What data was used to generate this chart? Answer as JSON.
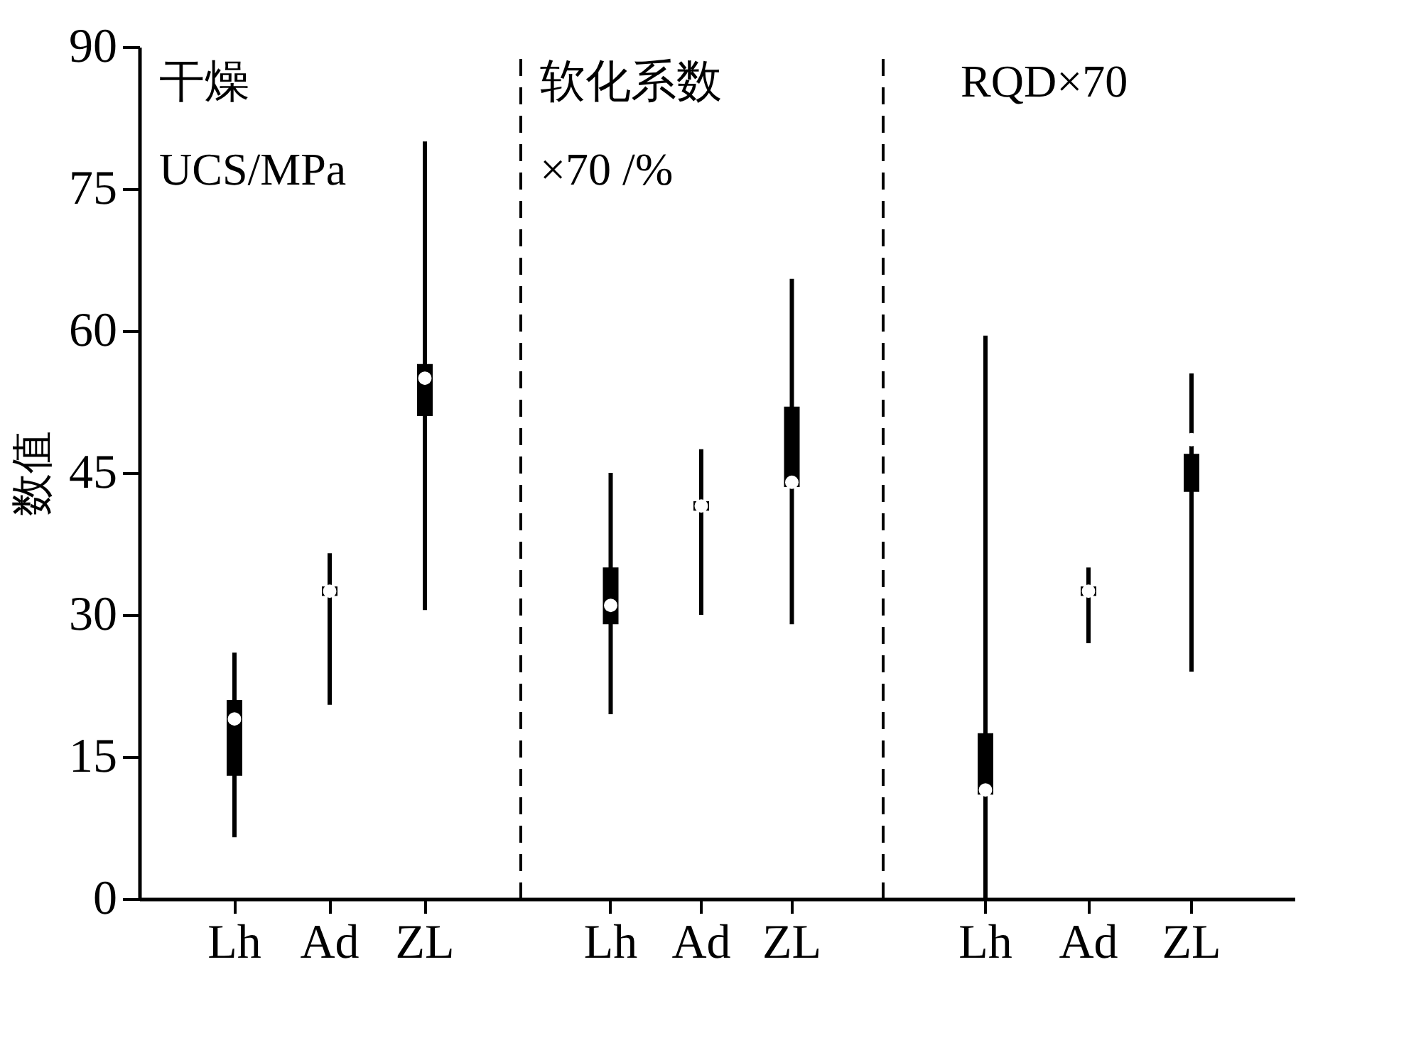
{
  "chart_data": [
    {
      "type": "box",
      "ylabel": "数值",
      "annotations": [
        "干燥",
        "UCS/MPa"
      ],
      "categories": [
        "Lh",
        "Ad",
        "ZL"
      ],
      "ylim": [
        0,
        90
      ],
      "yticks": [
        0,
        15,
        30,
        45,
        60,
        75,
        90
      ],
      "boxes": [
        {
          "low": 6.5,
          "q1": 13,
          "median": 19,
          "q3": 21,
          "high": 26
        },
        {
          "low": 20.5,
          "q1": 32,
          "median": 32.5,
          "q3": 33,
          "high": 36.5
        },
        {
          "low": 30.5,
          "q1": 51,
          "median": 55,
          "q3": 56.5,
          "high": 80
        }
      ]
    },
    {
      "type": "box",
      "annotations": [
        "软化系数",
        "×70 /%"
      ],
      "categories": [
        "Lh",
        "Ad",
        "ZL"
      ],
      "ylim": [
        0,
        90
      ],
      "yticks": [
        0,
        15,
        30,
        45,
        60,
        75,
        90
      ],
      "tick_labels": "x",
      "boxes": [
        {
          "low": 19.5,
          "q1": 29,
          "median": 31,
          "q3": 35,
          "high": 45
        },
        {
          "low": 30,
          "q1": 41,
          "median": 41.5,
          "q3": 42,
          "high": 47.5
        },
        {
          "low": 29,
          "q1": 43.5,
          "median": 44,
          "q3": 52,
          "high": 65.5
        }
      ]
    },
    {
      "type": "box",
      "annotations": [
        "RQD×70"
      ],
      "categories": [
        "Lh",
        "Ad",
        "ZL"
      ],
      "ylim": [
        0,
        90
      ],
      "yticks": [
        0,
        15,
        30,
        45,
        60,
        75,
        90
      ],
      "tick_labels": "x",
      "boxes": [
        {
          "low": 0,
          "q1": 11,
          "median": 11.5,
          "q3": 17.5,
          "high": 59.5
        },
        {
          "low": 27,
          "q1": 32,
          "median": 32.5,
          "q3": 33,
          "high": 35
        },
        {
          "low": 24,
          "q1": 43,
          "median": 48.5,
          "q3": 47,
          "high": 55.5
        }
      ]
    }
  ]
}
